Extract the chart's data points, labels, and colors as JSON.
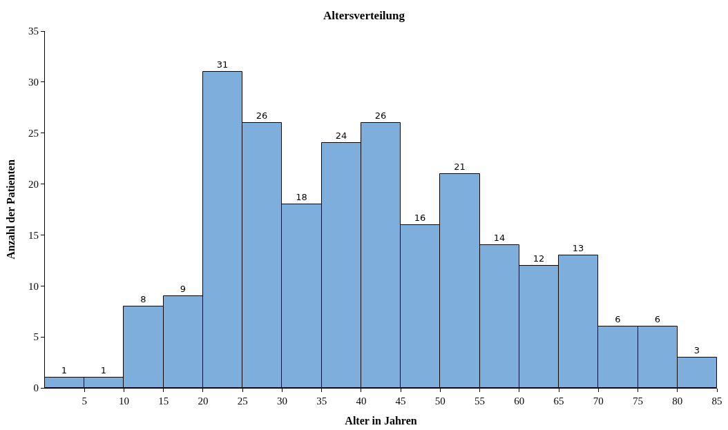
{
  "chart_data": {
    "type": "histogram",
    "title": "Altersverteilung",
    "xlabel": "Alter in Jahren",
    "ylabel": "Anzahl der Patienten",
    "bins": [
      0,
      5,
      10,
      15,
      20,
      25,
      30,
      35,
      40,
      45,
      50,
      55,
      60,
      65,
      70,
      75,
      80,
      85
    ],
    "values": [
      1,
      1,
      8,
      9,
      31,
      26,
      18,
      24,
      26,
      16,
      21,
      14,
      12,
      13,
      6,
      6,
      3
    ],
    "color": "#7eaedb",
    "xlim": [
      0,
      85
    ],
    "xticks": [
      5,
      10,
      15,
      20,
      25,
      30,
      35,
      40,
      45,
      50,
      55,
      60,
      65,
      70,
      75,
      80,
      85
    ],
    "ylim": [
      0,
      35
    ],
    "yticks": [
      0,
      5,
      10,
      15,
      20,
      25,
      30,
      35
    ],
    "data_labels": true
  }
}
